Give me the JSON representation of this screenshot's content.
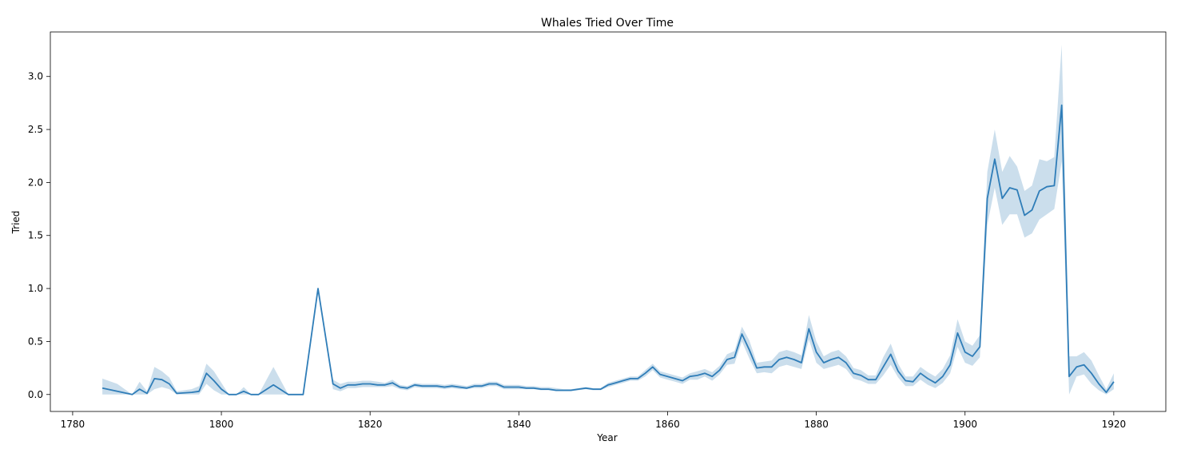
{
  "chart_data": {
    "type": "line",
    "title": "Whales Tried Over Time",
    "xlabel": "Year",
    "ylabel": "Tried",
    "xlim": [
      1777,
      1927
    ],
    "ylim": [
      -0.16,
      3.42
    ],
    "xticks": [
      1780,
      1800,
      1820,
      1840,
      1860,
      1880,
      1900,
      1920
    ],
    "yticks": [
      0.0,
      0.5,
      1.0,
      1.5,
      2.0,
      2.5,
      3.0
    ],
    "ytick_labels": [
      "0.0",
      "0.5",
      "1.0",
      "1.5",
      "2.0",
      "2.5",
      "3.0"
    ],
    "grid": false,
    "colors": {
      "line": "#2f7db8",
      "band": "#a9c8e0"
    },
    "series": [
      {
        "x": [
          1784,
          1786,
          1788,
          1789,
          1790,
          1791,
          1792,
          1793,
          1794,
          1796,
          1797,
          1798,
          1799,
          1800,
          1801,
          1802,
          1803,
          1804,
          1805,
          1807,
          1809,
          1811,
          1813,
          1815,
          1816,
          1817,
          1818,
          1819,
          1820,
          1821,
          1822,
          1823,
          1824,
          1825,
          1826,
          1827,
          1828,
          1829,
          1830,
          1831,
          1832,
          1833,
          1834,
          1835,
          1836,
          1837,
          1838,
          1839,
          1840,
          1841,
          1842,
          1843,
          1844,
          1845,
          1846,
          1847,
          1848,
          1849,
          1850,
          1851,
          1852,
          1853,
          1854,
          1855,
          1856,
          1857,
          1858,
          1859,
          1860,
          1861,
          1862,
          1863,
          1864,
          1865,
          1866,
          1867,
          1868,
          1869,
          1870,
          1871,
          1872,
          1873,
          1874,
          1875,
          1876,
          1877,
          1878,
          1879,
          1880,
          1881,
          1882,
          1883,
          1884,
          1885,
          1886,
          1887,
          1888,
          1889,
          1890,
          1891,
          1892,
          1893,
          1894,
          1895,
          1896,
          1897,
          1898,
          1899,
          1900,
          1901,
          1902,
          1903,
          1904,
          1905,
          1906,
          1907,
          1908,
          1909,
          1910,
          1911,
          1912,
          1913,
          1914,
          1915,
          1916,
          1917,
          1918,
          1919,
          1920
        ],
        "y": [
          0.06,
          0.03,
          0.0,
          0.05,
          0.01,
          0.15,
          0.14,
          0.1,
          0.01,
          0.02,
          0.03,
          0.2,
          0.13,
          0.05,
          0.0,
          0.0,
          0.03,
          0.0,
          0.0,
          0.09,
          0.0,
          0.0,
          1.0,
          0.1,
          0.06,
          0.09,
          0.09,
          0.1,
          0.1,
          0.09,
          0.09,
          0.11,
          0.07,
          0.06,
          0.09,
          0.08,
          0.08,
          0.08,
          0.07,
          0.08,
          0.07,
          0.06,
          0.08,
          0.08,
          0.1,
          0.1,
          0.07,
          0.07,
          0.07,
          0.06,
          0.06,
          0.05,
          0.05,
          0.04,
          0.04,
          0.04,
          0.05,
          0.06,
          0.05,
          0.05,
          0.09,
          0.11,
          0.13,
          0.15,
          0.15,
          0.2,
          0.26,
          0.19,
          0.17,
          0.15,
          0.13,
          0.17,
          0.18,
          0.2,
          0.17,
          0.23,
          0.33,
          0.35,
          0.57,
          0.42,
          0.25,
          0.26,
          0.26,
          0.33,
          0.35,
          0.33,
          0.3,
          0.62,
          0.4,
          0.3,
          0.33,
          0.35,
          0.3,
          0.2,
          0.18,
          0.14,
          0.14,
          0.26,
          0.38,
          0.22,
          0.13,
          0.12,
          0.2,
          0.15,
          0.11,
          0.17,
          0.28,
          0.58,
          0.4,
          0.36,
          0.45,
          1.85,
          2.22,
          1.85,
          1.95,
          1.93,
          1.69,
          1.74,
          1.92,
          1.96,
          1.97,
          2.73,
          0.17,
          0.26,
          0.28,
          0.2,
          0.1,
          0.02,
          0.12
        ],
        "y_lower": [
          0.0,
          0.0,
          0.0,
          0.0,
          0.0,
          0.05,
          0.07,
          0.05,
          0.0,
          0.0,
          0.0,
          0.1,
          0.04,
          0.0,
          0.0,
          0.0,
          0.0,
          0.0,
          0.0,
          0.0,
          0.0,
          0.0,
          1.0,
          0.05,
          0.03,
          0.06,
          0.06,
          0.07,
          0.07,
          0.07,
          0.07,
          0.08,
          0.05,
          0.04,
          0.07,
          0.06,
          0.06,
          0.06,
          0.05,
          0.06,
          0.05,
          0.05,
          0.06,
          0.06,
          0.08,
          0.08,
          0.05,
          0.05,
          0.05,
          0.05,
          0.05,
          0.04,
          0.04,
          0.03,
          0.03,
          0.03,
          0.04,
          0.05,
          0.04,
          0.04,
          0.07,
          0.09,
          0.11,
          0.13,
          0.13,
          0.17,
          0.23,
          0.16,
          0.14,
          0.12,
          0.1,
          0.14,
          0.14,
          0.17,
          0.13,
          0.19,
          0.28,
          0.29,
          0.5,
          0.34,
          0.2,
          0.21,
          0.2,
          0.26,
          0.28,
          0.26,
          0.24,
          0.52,
          0.3,
          0.24,
          0.26,
          0.28,
          0.24,
          0.15,
          0.13,
          0.1,
          0.1,
          0.18,
          0.28,
          0.16,
          0.08,
          0.08,
          0.14,
          0.09,
          0.06,
          0.11,
          0.2,
          0.45,
          0.3,
          0.27,
          0.35,
          1.6,
          1.95,
          1.6,
          1.7,
          1.7,
          1.48,
          1.52,
          1.65,
          1.7,
          1.75,
          2.2,
          0.0,
          0.17,
          0.19,
          0.1,
          0.04,
          0.0,
          0.05
        ],
        "y_upper": [
          0.15,
          0.1,
          0.0,
          0.12,
          0.03,
          0.26,
          0.22,
          0.16,
          0.03,
          0.05,
          0.08,
          0.29,
          0.22,
          0.11,
          0.0,
          0.0,
          0.07,
          0.0,
          0.0,
          0.26,
          0.0,
          0.0,
          1.0,
          0.14,
          0.1,
          0.12,
          0.12,
          0.13,
          0.13,
          0.12,
          0.11,
          0.14,
          0.09,
          0.08,
          0.11,
          0.1,
          0.1,
          0.1,
          0.09,
          0.1,
          0.09,
          0.08,
          0.1,
          0.1,
          0.12,
          0.12,
          0.09,
          0.09,
          0.09,
          0.08,
          0.08,
          0.07,
          0.07,
          0.06,
          0.05,
          0.05,
          0.06,
          0.07,
          0.06,
          0.06,
          0.11,
          0.13,
          0.15,
          0.17,
          0.17,
          0.23,
          0.29,
          0.22,
          0.2,
          0.18,
          0.16,
          0.2,
          0.22,
          0.24,
          0.21,
          0.27,
          0.38,
          0.41,
          0.64,
          0.51,
          0.3,
          0.31,
          0.32,
          0.4,
          0.42,
          0.4,
          0.37,
          0.75,
          0.5,
          0.36,
          0.4,
          0.42,
          0.36,
          0.25,
          0.23,
          0.18,
          0.18,
          0.35,
          0.48,
          0.29,
          0.17,
          0.17,
          0.26,
          0.21,
          0.17,
          0.24,
          0.37,
          0.71,
          0.5,
          0.46,
          0.56,
          2.1,
          2.5,
          2.1,
          2.25,
          2.15,
          1.92,
          1.97,
          2.22,
          2.2,
          2.24,
          3.3,
          0.36,
          0.36,
          0.4,
          0.32,
          0.18,
          0.05,
          0.2
        ]
      }
    ]
  }
}
